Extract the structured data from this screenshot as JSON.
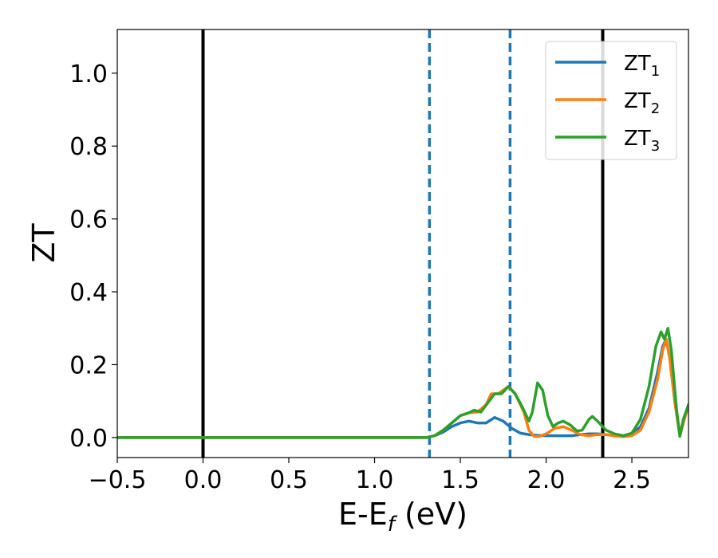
{
  "chart_data": {
    "type": "line",
    "title": "",
    "xlabel": {
      "base": "E-E",
      "sub": "f",
      "unit": " (eV)"
    },
    "ylabel": "ZT",
    "xlim": [
      -0.5,
      2.83
    ],
    "ylim": [
      -0.055,
      1.12
    ],
    "x_ticks": [
      -0.5,
      0.0,
      0.5,
      1.0,
      1.5,
      2.0,
      2.5
    ],
    "x_tick_labels": [
      "−0.5",
      "0.0",
      "0.5",
      "1.0",
      "1.5",
      "2.0",
      "2.5"
    ],
    "y_ticks": [
      0.0,
      0.2,
      0.4,
      0.6,
      0.8,
      1.0
    ],
    "y_tick_labels": [
      "0.0",
      "0.2",
      "0.4",
      "0.6",
      "0.8",
      "1.0"
    ],
    "grid": false,
    "legend_position": "top-right",
    "vertical_lines": [
      {
        "x": 0.0,
        "style": "solid",
        "color": "#000000"
      },
      {
        "x": 2.33,
        "style": "solid",
        "color": "#000000"
      },
      {
        "x": 1.32,
        "style": "dashed",
        "color": "#1f77b4"
      },
      {
        "x": 1.79,
        "style": "dashed",
        "color": "#1f77b4"
      }
    ],
    "series": [
      {
        "name": "ZT",
        "name_sub": "1",
        "color": "#1f77b4",
        "points": [
          [
            -0.5,
            0
          ],
          [
            1.3,
            0
          ],
          [
            1.35,
            0.005
          ],
          [
            1.4,
            0.015
          ],
          [
            1.45,
            0.03
          ],
          [
            1.5,
            0.04
          ],
          [
            1.55,
            0.045
          ],
          [
            1.6,
            0.04
          ],
          [
            1.65,
            0.04
          ],
          [
            1.7,
            0.055
          ],
          [
            1.75,
            0.045
          ],
          [
            1.8,
            0.025
          ],
          [
            1.85,
            0.012
          ],
          [
            1.9,
            0.008
          ],
          [
            1.95,
            0.006
          ],
          [
            2.0,
            0.005
          ],
          [
            2.05,
            0.005
          ],
          [
            2.1,
            0.005
          ],
          [
            2.15,
            0.005
          ],
          [
            2.2,
            0.008
          ],
          [
            2.25,
            0.01
          ],
          [
            2.3,
            0.01
          ],
          [
            2.35,
            0.008
          ],
          [
            2.4,
            0.005
          ],
          [
            2.45,
            0.005
          ],
          [
            2.5,
            0.01
          ],
          [
            2.55,
            0.03
          ],
          [
            2.6,
            0.08
          ],
          [
            2.65,
            0.18
          ],
          [
            2.68,
            0.25
          ],
          [
            2.7,
            0.27
          ],
          [
            2.72,
            0.22
          ],
          [
            2.75,
            0.1
          ],
          [
            2.78,
            0.005
          ],
          [
            2.8,
            0.04
          ],
          [
            2.83,
            0.09
          ]
        ]
      },
      {
        "name": "ZT",
        "name_sub": "2",
        "color": "#ff7f0e",
        "points": [
          [
            -0.5,
            0
          ],
          [
            1.3,
            0
          ],
          [
            1.35,
            0.005
          ],
          [
            1.4,
            0.02
          ],
          [
            1.45,
            0.04
          ],
          [
            1.5,
            0.06
          ],
          [
            1.55,
            0.068
          ],
          [
            1.6,
            0.07
          ],
          [
            1.65,
            0.09
          ],
          [
            1.68,
            0.12
          ],
          [
            1.72,
            0.12
          ],
          [
            1.75,
            0.13
          ],
          [
            1.78,
            0.14
          ],
          [
            1.82,
            0.12
          ],
          [
            1.87,
            0.07
          ],
          [
            1.9,
            0.02
          ],
          [
            1.93,
            0.003
          ],
          [
            1.96,
            0.003
          ],
          [
            2.0,
            0.01
          ],
          [
            2.05,
            0.025
          ],
          [
            2.1,
            0.03
          ],
          [
            2.15,
            0.02
          ],
          [
            2.2,
            0.008
          ],
          [
            2.25,
            0.005
          ],
          [
            2.3,
            0.008
          ],
          [
            2.35,
            0.008
          ],
          [
            2.4,
            0.005
          ],
          [
            2.45,
            0.002
          ],
          [
            2.5,
            0.005
          ],
          [
            2.55,
            0.02
          ],
          [
            2.6,
            0.07
          ],
          [
            2.65,
            0.16
          ],
          [
            2.68,
            0.24
          ],
          [
            2.7,
            0.27
          ],
          [
            2.72,
            0.22
          ],
          [
            2.75,
            0.1
          ],
          [
            2.78,
            0.005
          ],
          [
            2.8,
            0.04
          ],
          [
            2.83,
            0.09
          ]
        ]
      },
      {
        "name": "ZT",
        "name_sub": "3",
        "color": "#2ca02c",
        "points": [
          [
            -0.5,
            0
          ],
          [
            1.3,
            0
          ],
          [
            1.35,
            0.005
          ],
          [
            1.4,
            0.02
          ],
          [
            1.45,
            0.04
          ],
          [
            1.5,
            0.06
          ],
          [
            1.55,
            0.068
          ],
          [
            1.58,
            0.075
          ],
          [
            1.62,
            0.07
          ],
          [
            1.66,
            0.095
          ],
          [
            1.7,
            0.12
          ],
          [
            1.74,
            0.12
          ],
          [
            1.78,
            0.14
          ],
          [
            1.82,
            0.12
          ],
          [
            1.86,
            0.085
          ],
          [
            1.9,
            0.045
          ],
          [
            1.92,
            0.07
          ],
          [
            1.95,
            0.15
          ],
          [
            1.98,
            0.13
          ],
          [
            2.01,
            0.06
          ],
          [
            2.04,
            0.03
          ],
          [
            2.07,
            0.04
          ],
          [
            2.1,
            0.045
          ],
          [
            2.14,
            0.035
          ],
          [
            2.18,
            0.018
          ],
          [
            2.21,
            0.02
          ],
          [
            2.25,
            0.05
          ],
          [
            2.27,
            0.058
          ],
          [
            2.3,
            0.045
          ],
          [
            2.35,
            0.02
          ],
          [
            2.4,
            0.01
          ],
          [
            2.45,
            0.005
          ],
          [
            2.5,
            0.012
          ],
          [
            2.55,
            0.05
          ],
          [
            2.6,
            0.14
          ],
          [
            2.64,
            0.25
          ],
          [
            2.67,
            0.29
          ],
          [
            2.69,
            0.27
          ],
          [
            2.71,
            0.3
          ],
          [
            2.73,
            0.24
          ],
          [
            2.76,
            0.08
          ],
          [
            2.78,
            0.003
          ],
          [
            2.8,
            0.05
          ],
          [
            2.83,
            0.09
          ]
        ]
      }
    ]
  }
}
